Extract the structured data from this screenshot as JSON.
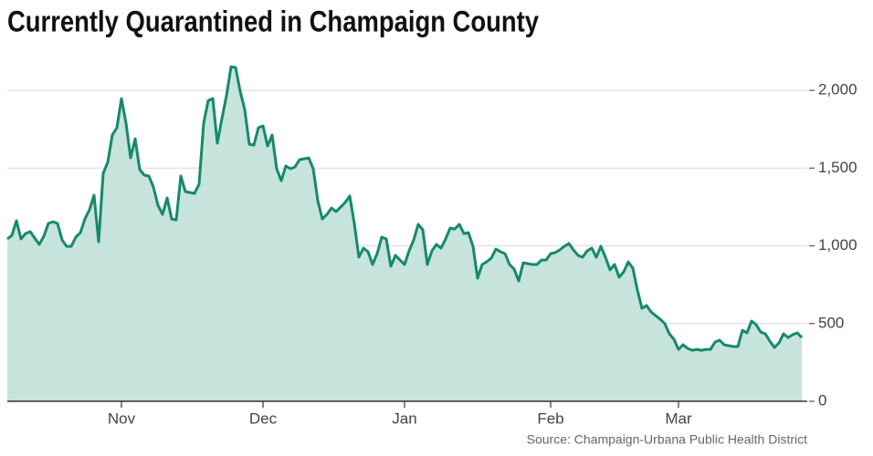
{
  "chart_data": {
    "type": "area",
    "title": "Currently Quarantined in Champaign County",
    "source": "Source: Champaign-Urbana Public Health District",
    "categories": [
      null,
      null,
      null,
      null,
      null,
      null,
      null,
      null,
      null,
      null,
      null,
      null,
      null,
      null,
      null,
      null,
      null,
      null,
      null,
      null,
      null,
      null,
      null,
      null,
      null,
      "Nov",
      null,
      null,
      null,
      null,
      null,
      null,
      null,
      null,
      null,
      null,
      null,
      null,
      null,
      null,
      null,
      null,
      null,
      null,
      null,
      null,
      null,
      null,
      null,
      null,
      null,
      null,
      null,
      null,
      null,
      null,
      "Dec",
      null,
      null,
      null,
      null,
      null,
      null,
      null,
      null,
      null,
      null,
      null,
      null,
      null,
      null,
      null,
      null,
      null,
      null,
      null,
      null,
      null,
      null,
      null,
      null,
      null,
      null,
      null,
      null,
      null,
      null,
      "Jan",
      null,
      null,
      null,
      null,
      null,
      null,
      null,
      null,
      null,
      null,
      null,
      null,
      null,
      null,
      null,
      null,
      null,
      null,
      null,
      null,
      null,
      null,
      null,
      null,
      null,
      null,
      null,
      null,
      null,
      null,
      null,
      "Feb",
      null,
      null,
      null,
      null,
      null,
      null,
      null,
      null,
      null,
      null,
      null,
      null,
      null,
      null,
      null,
      null,
      null,
      null,
      null,
      null,
      null,
      null,
      null,
      null,
      null,
      null,
      null,
      "Mar",
      null,
      null,
      null,
      null,
      null,
      null,
      null,
      null,
      null,
      null,
      null,
      null,
      null,
      null,
      null,
      null,
      null,
      null,
      null,
      null,
      null,
      null,
      null,
      null,
      null,
      null,
      null
    ],
    "series": [
      {
        "color": "#17896b",
        "fill": "#c6e4dc",
        "values": [
          1044,
          1067,
          1161,
          1044,
          1079,
          1091,
          1050,
          1009,
          1062,
          1144,
          1155,
          1144,
          1038,
          997,
          997,
          1056,
          1085,
          1173,
          1232,
          1326,
          1026,
          1466,
          1537,
          1713,
          1760,
          1947,
          1789,
          1566,
          1689,
          1490,
          1455,
          1449,
          1378,
          1261,
          1202,
          1308,
          1173,
          1167,
          1449,
          1349,
          1343,
          1337,
          1396,
          1789,
          1935,
          1947,
          1660,
          1818,
          1965,
          2152,
          2147,
          1994,
          1877,
          1654,
          1648,
          1760,
          1771,
          1642,
          1713,
          1496,
          1419,
          1513,
          1496,
          1507,
          1554,
          1560,
          1566,
          1496,
          1290,
          1173,
          1202,
          1243,
          1220,
          1249,
          1279,
          1320,
          1144,
          927,
          985,
          962,
          880,
          950,
          1056,
          1044,
          868,
          938,
          909,
          880,
          968,
          1038,
          1138,
          1103,
          880,
          968,
          1009,
          985,
          1044,
          1114,
          1108,
          1138,
          1079,
          1085,
          997,
          792,
          880,
          897,
          921,
          979,
          962,
          950,
          880,
          850,
          774,
          891,
          885,
          880,
          880,
          909,
          909,
          950,
          956,
          974,
          997,
          1015,
          974,
          938,
          927,
          968,
          985,
          927,
          997,
          927,
          845,
          880,
          798,
          833,
          897,
          856,
          716,
          598,
          616,
          575,
          551,
          528,
          499,
          434,
          399,
          334,
          364,
          340,
          328,
          334,
          328,
          334,
          334,
          381,
          393,
          364,
          358,
          352,
          352,
          457,
          440,
          516,
          493,
          446,
          434,
          387,
          346,
          375,
          434,
          410,
          428,
          440,
          410
        ]
      }
    ],
    "ylim": [
      0,
      2200
    ],
    "yticks": [
      0,
      500,
      {
        "value": 1000,
        "label": "1,000"
      },
      {
        "value": 1500,
        "label": "1,500"
      },
      {
        "value": 2000,
        "label": "2,000"
      }
    ],
    "grid": true
  }
}
